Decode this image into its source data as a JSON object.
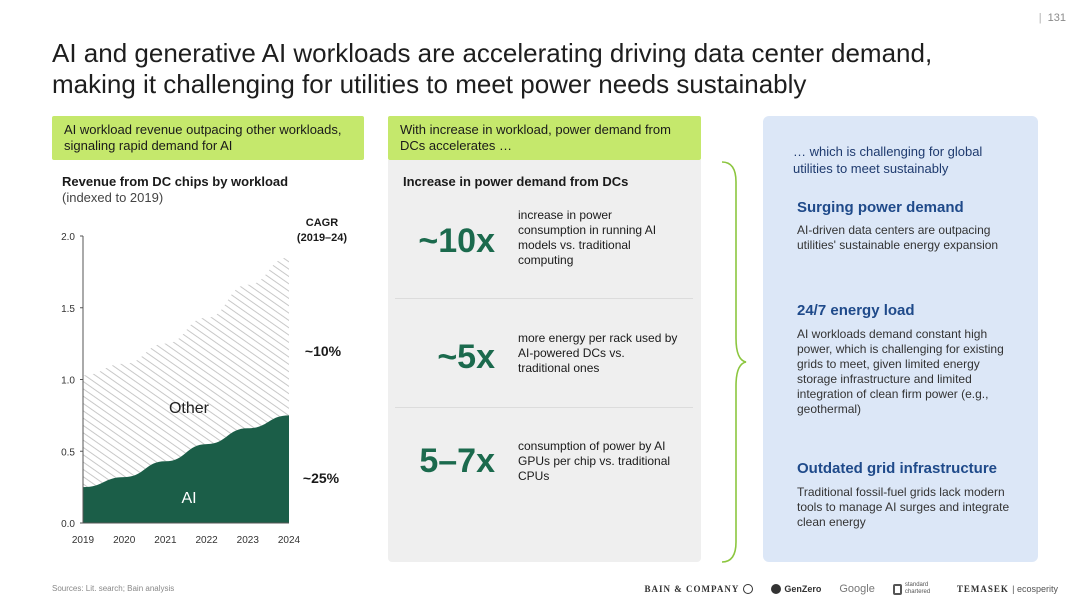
{
  "page_number": "131",
  "title": "AI and generative AI workloads are accelerating driving data center demand, making it challenging for utilities to meet power needs sustainably",
  "left": {
    "callout": "AI workload revenue outpacing other workloads, signaling rapid demand for AI",
    "cagr_header": "CAGR (2019–24)",
    "cagr_other": "~10%",
    "cagr_ai": "~25%"
  },
  "middle": {
    "callout": "With increase in workload, power demand from DCs accelerates …",
    "heading": "Increase in power demand from DCs",
    "metrics": [
      {
        "value": "~10x",
        "desc": "increase in power consumption in running AI models vs. traditional computing"
      },
      {
        "value": "~5x",
        "desc": "more energy per rack used by AI-powered DCs vs. traditional ones"
      },
      {
        "value": "5–7x",
        "desc": "consumption of power by AI GPUs per chip vs. traditional CPUs"
      }
    ]
  },
  "right": {
    "intro": "… which is challenging for global utilities to meet sustainably",
    "sections": [
      {
        "heading": "Surging power demand",
        "body": "AI-driven data centers are outpacing utilities' sustainable energy expansion"
      },
      {
        "heading": "24/7 energy load",
        "body": "AI workloads demand constant high power, which is challenging for existing grids to meet, given limited energy storage infrastructure and limited integration of clean firm power (e.g., geothermal)"
      },
      {
        "heading": "Outdated grid infrastructure",
        "body": "Traditional fossil-fuel grids lack modern tools to manage AI surges and integrate clean energy"
      }
    ]
  },
  "footer": {
    "sources": "Sources: Lit. search; Bain analysis",
    "logos": [
      "BAIN & COMPANY",
      "GenZero",
      "Google",
      "standard chartered",
      "TEMASEK",
      "ecosperity"
    ]
  },
  "colors": {
    "ai_fill": "#1b5e48",
    "other_hatch": "#c8c8c8",
    "callout_green": "#c5e86c",
    "metric_green": "#1b6a4d",
    "right_panel": "#dce7f7",
    "right_heading": "#1f4a8a"
  },
  "chart_data": {
    "type": "area",
    "title": "Revenue from DC chips by workload",
    "subtitle": "(indexed to 2019)",
    "x": [
      2019,
      2020,
      2021,
      2022,
      2023,
      2024
    ],
    "series": [
      {
        "name": "AI",
        "values": [
          0.25,
          0.32,
          0.43,
          0.55,
          0.66,
          0.75
        ]
      },
      {
        "name": "Other",
        "values": [
          0.78,
          0.79,
          0.82,
          0.88,
          1.0,
          1.1
        ]
      }
    ],
    "stacked": true,
    "ylim": [
      0,
      2.0
    ],
    "yticks": [
      "0.0",
      "0.5",
      "1.0",
      "1.5",
      "2.0"
    ],
    "xticks": [
      "2019",
      "2020",
      "2021",
      "2022",
      "2023",
      "2024"
    ]
  }
}
